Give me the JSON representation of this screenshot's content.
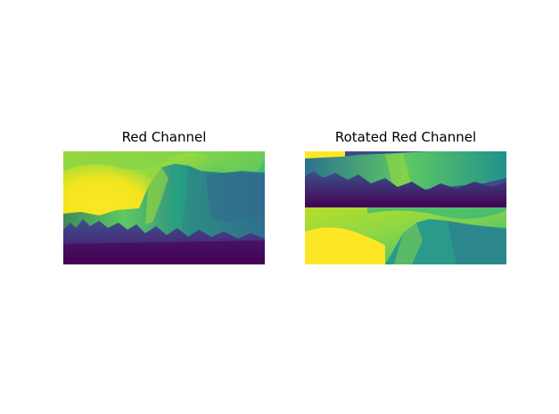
{
  "figure": {
    "panels": [
      {
        "title": "Red Channel",
        "image": "red-channel-image"
      },
      {
        "title": "Rotated Red Channel",
        "image": "rotated-red-channel-image"
      }
    ],
    "colormap": {
      "name": "viridis",
      "low": "#440154",
      "mid": "#21918c",
      "high": "#fde725"
    }
  }
}
